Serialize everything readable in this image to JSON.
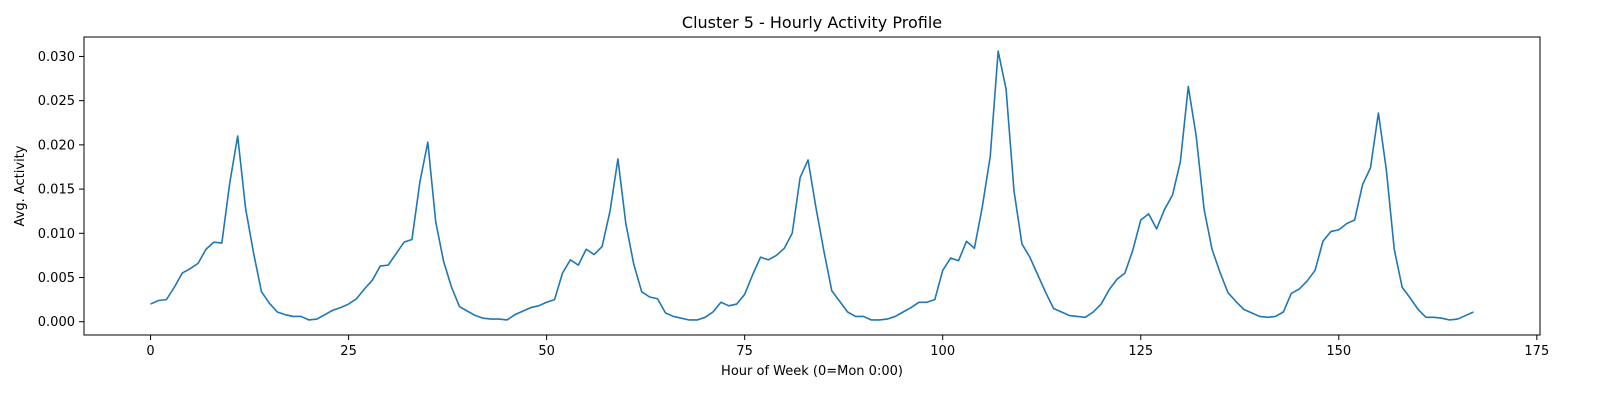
{
  "chart_data": {
    "type": "line",
    "title": "Cluster 5 - Hourly Activity Profile",
    "xlabel": "Hour of Week (0=Mon 0:00)",
    "ylabel": "Avg. Activity",
    "xlim": [
      -8.4,
      175.4
    ],
    "ylim": [
      -0.0015,
      0.0322
    ],
    "xticks": [
      0,
      25,
      50,
      75,
      100,
      125,
      150,
      175
    ],
    "xtick_labels": [
      "0",
      "25",
      "50",
      "75",
      "100",
      "125",
      "150",
      "175"
    ],
    "yticks": [
      0.0,
      0.005,
      0.01,
      0.015,
      0.02,
      0.025,
      0.03
    ],
    "ytick_labels": [
      "0.000",
      "0.005",
      "0.010",
      "0.015",
      "0.020",
      "0.025",
      "0.030"
    ],
    "grid": false,
    "series": [
      {
        "color": "#1f77b4",
        "x": [
          0,
          1,
          2,
          3,
          4,
          5,
          6,
          7,
          8,
          9,
          10,
          11,
          12,
          13,
          14,
          15,
          16,
          17,
          18,
          19,
          20,
          21,
          22,
          23,
          24,
          25,
          26,
          27,
          28,
          29,
          30,
          31,
          32,
          33,
          34,
          35,
          36,
          37,
          38,
          39,
          40,
          41,
          42,
          43,
          44,
          45,
          46,
          47,
          48,
          49,
          50,
          51,
          52,
          53,
          54,
          55,
          56,
          57,
          58,
          59,
          60,
          61,
          62,
          63,
          64,
          65,
          66,
          67,
          68,
          69,
          70,
          71,
          72,
          73,
          74,
          75,
          76,
          77,
          78,
          79,
          80,
          81,
          82,
          83,
          84,
          85,
          86,
          87,
          88,
          89,
          90,
          91,
          92,
          93,
          94,
          95,
          96,
          97,
          98,
          99,
          100,
          101,
          102,
          103,
          104,
          105,
          106,
          107,
          108,
          109,
          110,
          111,
          112,
          113,
          114,
          115,
          116,
          117,
          118,
          119,
          120,
          121,
          122,
          123,
          124,
          125,
          126,
          127,
          128,
          129,
          130,
          131,
          132,
          133,
          134,
          135,
          136,
          137,
          138,
          139,
          140,
          141,
          142,
          143,
          144,
          145,
          146,
          147,
          148,
          149,
          150,
          151,
          152,
          153,
          154,
          155,
          156,
          157,
          158,
          159,
          160,
          161,
          162,
          163,
          164,
          165,
          166,
          167
        ],
        "y": [
          0.002,
          0.0024,
          0.0025,
          0.0039,
          0.0055,
          0.006,
          0.0066,
          0.0082,
          0.009,
          0.0089,
          0.0157,
          0.021,
          0.0128,
          0.0078,
          0.0034,
          0.0021,
          0.0011,
          0.0008,
          0.0006,
          0.0006,
          0.0002,
          0.0003,
          0.0008,
          0.0013,
          0.0016,
          0.002,
          0.0026,
          0.0037,
          0.0047,
          0.0063,
          0.0064,
          0.0077,
          0.009,
          0.0093,
          0.0158,
          0.0203,
          0.0113,
          0.0068,
          0.0039,
          0.0017,
          0.0012,
          0.0007,
          0.0004,
          0.0003,
          0.0003,
          0.0002,
          0.0008,
          0.0012,
          0.0016,
          0.0018,
          0.0022,
          0.0025,
          0.0055,
          0.007,
          0.0064,
          0.0082,
          0.0076,
          0.0085,
          0.0125,
          0.0184,
          0.0111,
          0.0065,
          0.0034,
          0.0028,
          0.0026,
          0.001,
          0.0006,
          0.0004,
          0.0002,
          0.0002,
          0.0005,
          0.0011,
          0.0022,
          0.0018,
          0.002,
          0.0031,
          0.0053,
          0.0073,
          0.007,
          0.0075,
          0.0083,
          0.01,
          0.0163,
          0.0183,
          0.0129,
          0.008,
          0.0035,
          0.0023,
          0.0011,
          0.0006,
          0.0006,
          0.0002,
          0.0002,
          0.0003,
          0.0006,
          0.0011,
          0.0016,
          0.0022,
          0.0022,
          0.0025,
          0.0058,
          0.0072,
          0.0069,
          0.0091,
          0.0083,
          0.013,
          0.0187,
          0.0306,
          0.0263,
          0.0148,
          0.0088,
          0.0073,
          0.0053,
          0.0033,
          0.0015,
          0.0011,
          0.0007,
          0.0006,
          0.0005,
          0.0011,
          0.002,
          0.0036,
          0.0048,
          0.0055,
          0.0081,
          0.0115,
          0.0122,
          0.0105,
          0.0127,
          0.0143,
          0.0181,
          0.0266,
          0.021,
          0.0127,
          0.0082,
          0.0056,
          0.0033,
          0.0023,
          0.0014,
          0.001,
          0.0006,
          0.0005,
          0.0006,
          0.0011,
          0.0032,
          0.0037,
          0.0046,
          0.0058,
          0.0091,
          0.0102,
          0.0104,
          0.0111,
          0.0115,
          0.0155,
          0.0174,
          0.0236,
          0.0172,
          0.0082,
          0.0039,
          0.0027,
          0.0014,
          0.0005,
          0.0005,
          0.0004,
          0.0002,
          0.0003,
          0.0007,
          0.0011
        ]
      }
    ]
  }
}
